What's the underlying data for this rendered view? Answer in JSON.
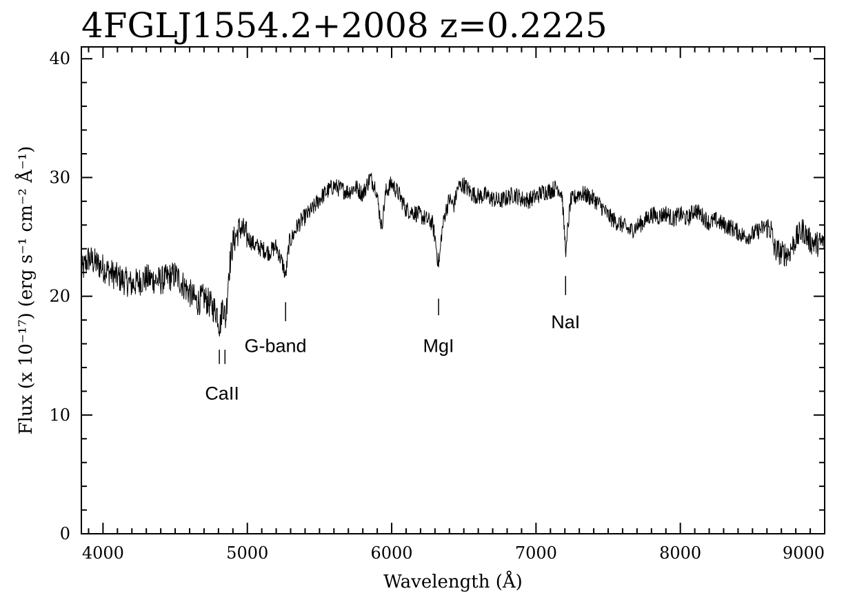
{
  "chart_data": {
    "type": "line",
    "title": "4FGLJ1554.2+2008 z=0.2225",
    "xlabel": "Wavelength (Å)",
    "ylabel": "Flux (x 10⁻¹⁷) (erg s⁻¹ cm⁻² Å⁻¹)",
    "xlim": [
      3850,
      9000
    ],
    "ylim": [
      0,
      41
    ],
    "x_ticks": [
      4000,
      5000,
      6000,
      7000,
      8000,
      9000
    ],
    "y_ticks": [
      0,
      10,
      20,
      30,
      40
    ],
    "grid": false,
    "legend": "none",
    "series": [
      {
        "x": [
          3850,
          3900,
          4000,
          4100,
          4200,
          4300,
          4400,
          4500,
          4600,
          4650,
          4700,
          4750,
          4790,
          4810,
          4830,
          4850,
          4870,
          4900,
          4950,
          5000,
          5050,
          5100,
          5150,
          5200,
          5250,
          5265,
          5290,
          5320,
          5350,
          5400,
          5450,
          5500,
          5550,
          5600,
          5650,
          5700,
          5750,
          5800,
          5850,
          5890,
          5930,
          5960,
          6000,
          6050,
          6100,
          6150,
          6200,
          6250,
          6280,
          6300,
          6320,
          6330,
          6345,
          6370,
          6400,
          6430,
          6460,
          6500,
          6550,
          6600,
          6650,
          6700,
          6750,
          6800,
          6850,
          6900,
          6950,
          7000,
          7050,
          7100,
          7150,
          7180,
          7200,
          7210,
          7220,
          7240,
          7270,
          7300,
          7350,
          7400,
          7450,
          7500,
          7550,
          7600,
          7650,
          7700,
          7750,
          7800,
          7850,
          7900,
          7950,
          8000,
          8050,
          8100,
          8150,
          8200,
          8250,
          8300,
          8350,
          8400,
          8450,
          8500,
          8550,
          8600,
          8630,
          8650,
          8700,
          8750,
          8800,
          8850,
          8900,
          8950,
          9000
        ],
        "y": [
          22.0,
          23.2,
          22.4,
          21.6,
          21.0,
          21.5,
          21.3,
          21.8,
          20.3,
          19.5,
          19.9,
          19.2,
          18.7,
          17.4,
          19.5,
          17.9,
          22.0,
          24.5,
          25.8,
          25.0,
          24.3,
          24.0,
          23.7,
          24.2,
          22.5,
          21.6,
          24.5,
          25.2,
          26.0,
          26.7,
          27.3,
          28.2,
          28.8,
          29.3,
          29.0,
          28.8,
          29.2,
          28.6,
          30.0,
          29.2,
          25.8,
          28.8,
          29.5,
          28.6,
          27.3,
          27.1,
          26.8,
          26.4,
          26.2,
          25.0,
          23.0,
          22.8,
          25.2,
          27.0,
          28.2,
          27.6,
          29.2,
          29.4,
          28.7,
          28.4,
          28.5,
          28.2,
          28.0,
          28.3,
          28.6,
          28.2,
          28.1,
          28.4,
          28.8,
          28.9,
          29.2,
          28.6,
          24.8,
          23.6,
          25.8,
          28.0,
          28.3,
          28.7,
          28.5,
          28.2,
          27.6,
          26.8,
          26.3,
          26.0,
          25.5,
          25.9,
          26.3,
          26.9,
          26.7,
          27.0,
          26.5,
          26.9,
          26.5,
          27.3,
          26.8,
          26.2,
          26.4,
          26.0,
          25.8,
          25.4,
          25.0,
          25.2,
          25.6,
          25.9,
          25.6,
          24.0,
          23.6,
          23.6,
          24.8,
          25.6,
          24.6,
          24.4,
          24.6
        ]
      }
    ],
    "annotations": [
      {
        "text": "CaII",
        "x_lines": [
          4806,
          4845
        ],
        "mark_y": [
          14.3,
          15.5
        ],
        "label_xy": [
          4825,
          11.3
        ]
      },
      {
        "text": "G-band",
        "x_lines": [
          5265
        ],
        "mark_y": [
          17.9,
          19.5
        ],
        "label_xy": [
          5195,
          15.3
        ]
      },
      {
        "text": "MgI",
        "x_lines": [
          6325
        ],
        "mark_y": [
          18.4,
          19.8
        ],
        "label_xy": [
          6325,
          15.3
        ]
      },
      {
        "text": "NaI",
        "x_lines": [
          7205
        ],
        "mark_y": [
          20.1,
          21.7
        ],
        "label_xy": [
          7205,
          17.3
        ]
      }
    ]
  }
}
